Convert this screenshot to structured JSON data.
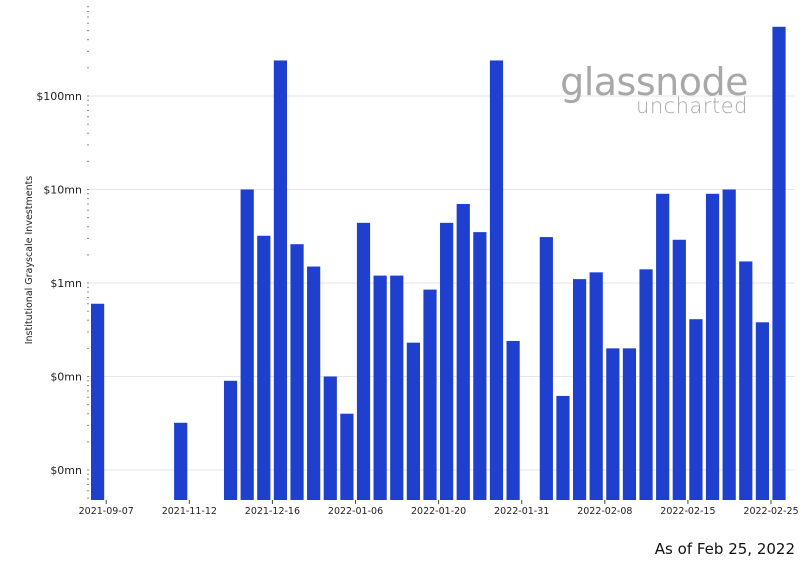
{
  "chart_data": {
    "type": "bar",
    "ylabel": "Institutional Grayscale Investments",
    "y_scale": "log",
    "ytick_labels": [
      "$0mn",
      "$0mn",
      "$1mn",
      "$10mn",
      "$100mn"
    ],
    "xtick_labels": [
      "2021-09-07",
      "2021-11-12",
      "2021-12-16",
      "2022-01-06",
      "2022-01-20",
      "2022-01-31",
      "2022-02-08",
      "2022-02-15",
      "2022-02-25"
    ],
    "series": [
      {
        "color": "#1f3fcf",
        "values": [
          0.6,
          null,
          null,
          null,
          null,
          0.032,
          null,
          null,
          0.09,
          10,
          3.2,
          240,
          2.6,
          1.5,
          0.1,
          0.04,
          4.4,
          1.2,
          1.2,
          0.23,
          0.85,
          4.4,
          7,
          3.5,
          240,
          0.24,
          0.002,
          3.1,
          0.062,
          1.1,
          1.3,
          0.2,
          0.2,
          1.4,
          9,
          2.9,
          0.41,
          9,
          10,
          1.7,
          0.38,
          550
        ]
      }
    ],
    "grid": true
  },
  "watermark": {
    "brand": "glassnode",
    "product": "uncharted"
  },
  "caption": "As of Feb 25, 2022"
}
